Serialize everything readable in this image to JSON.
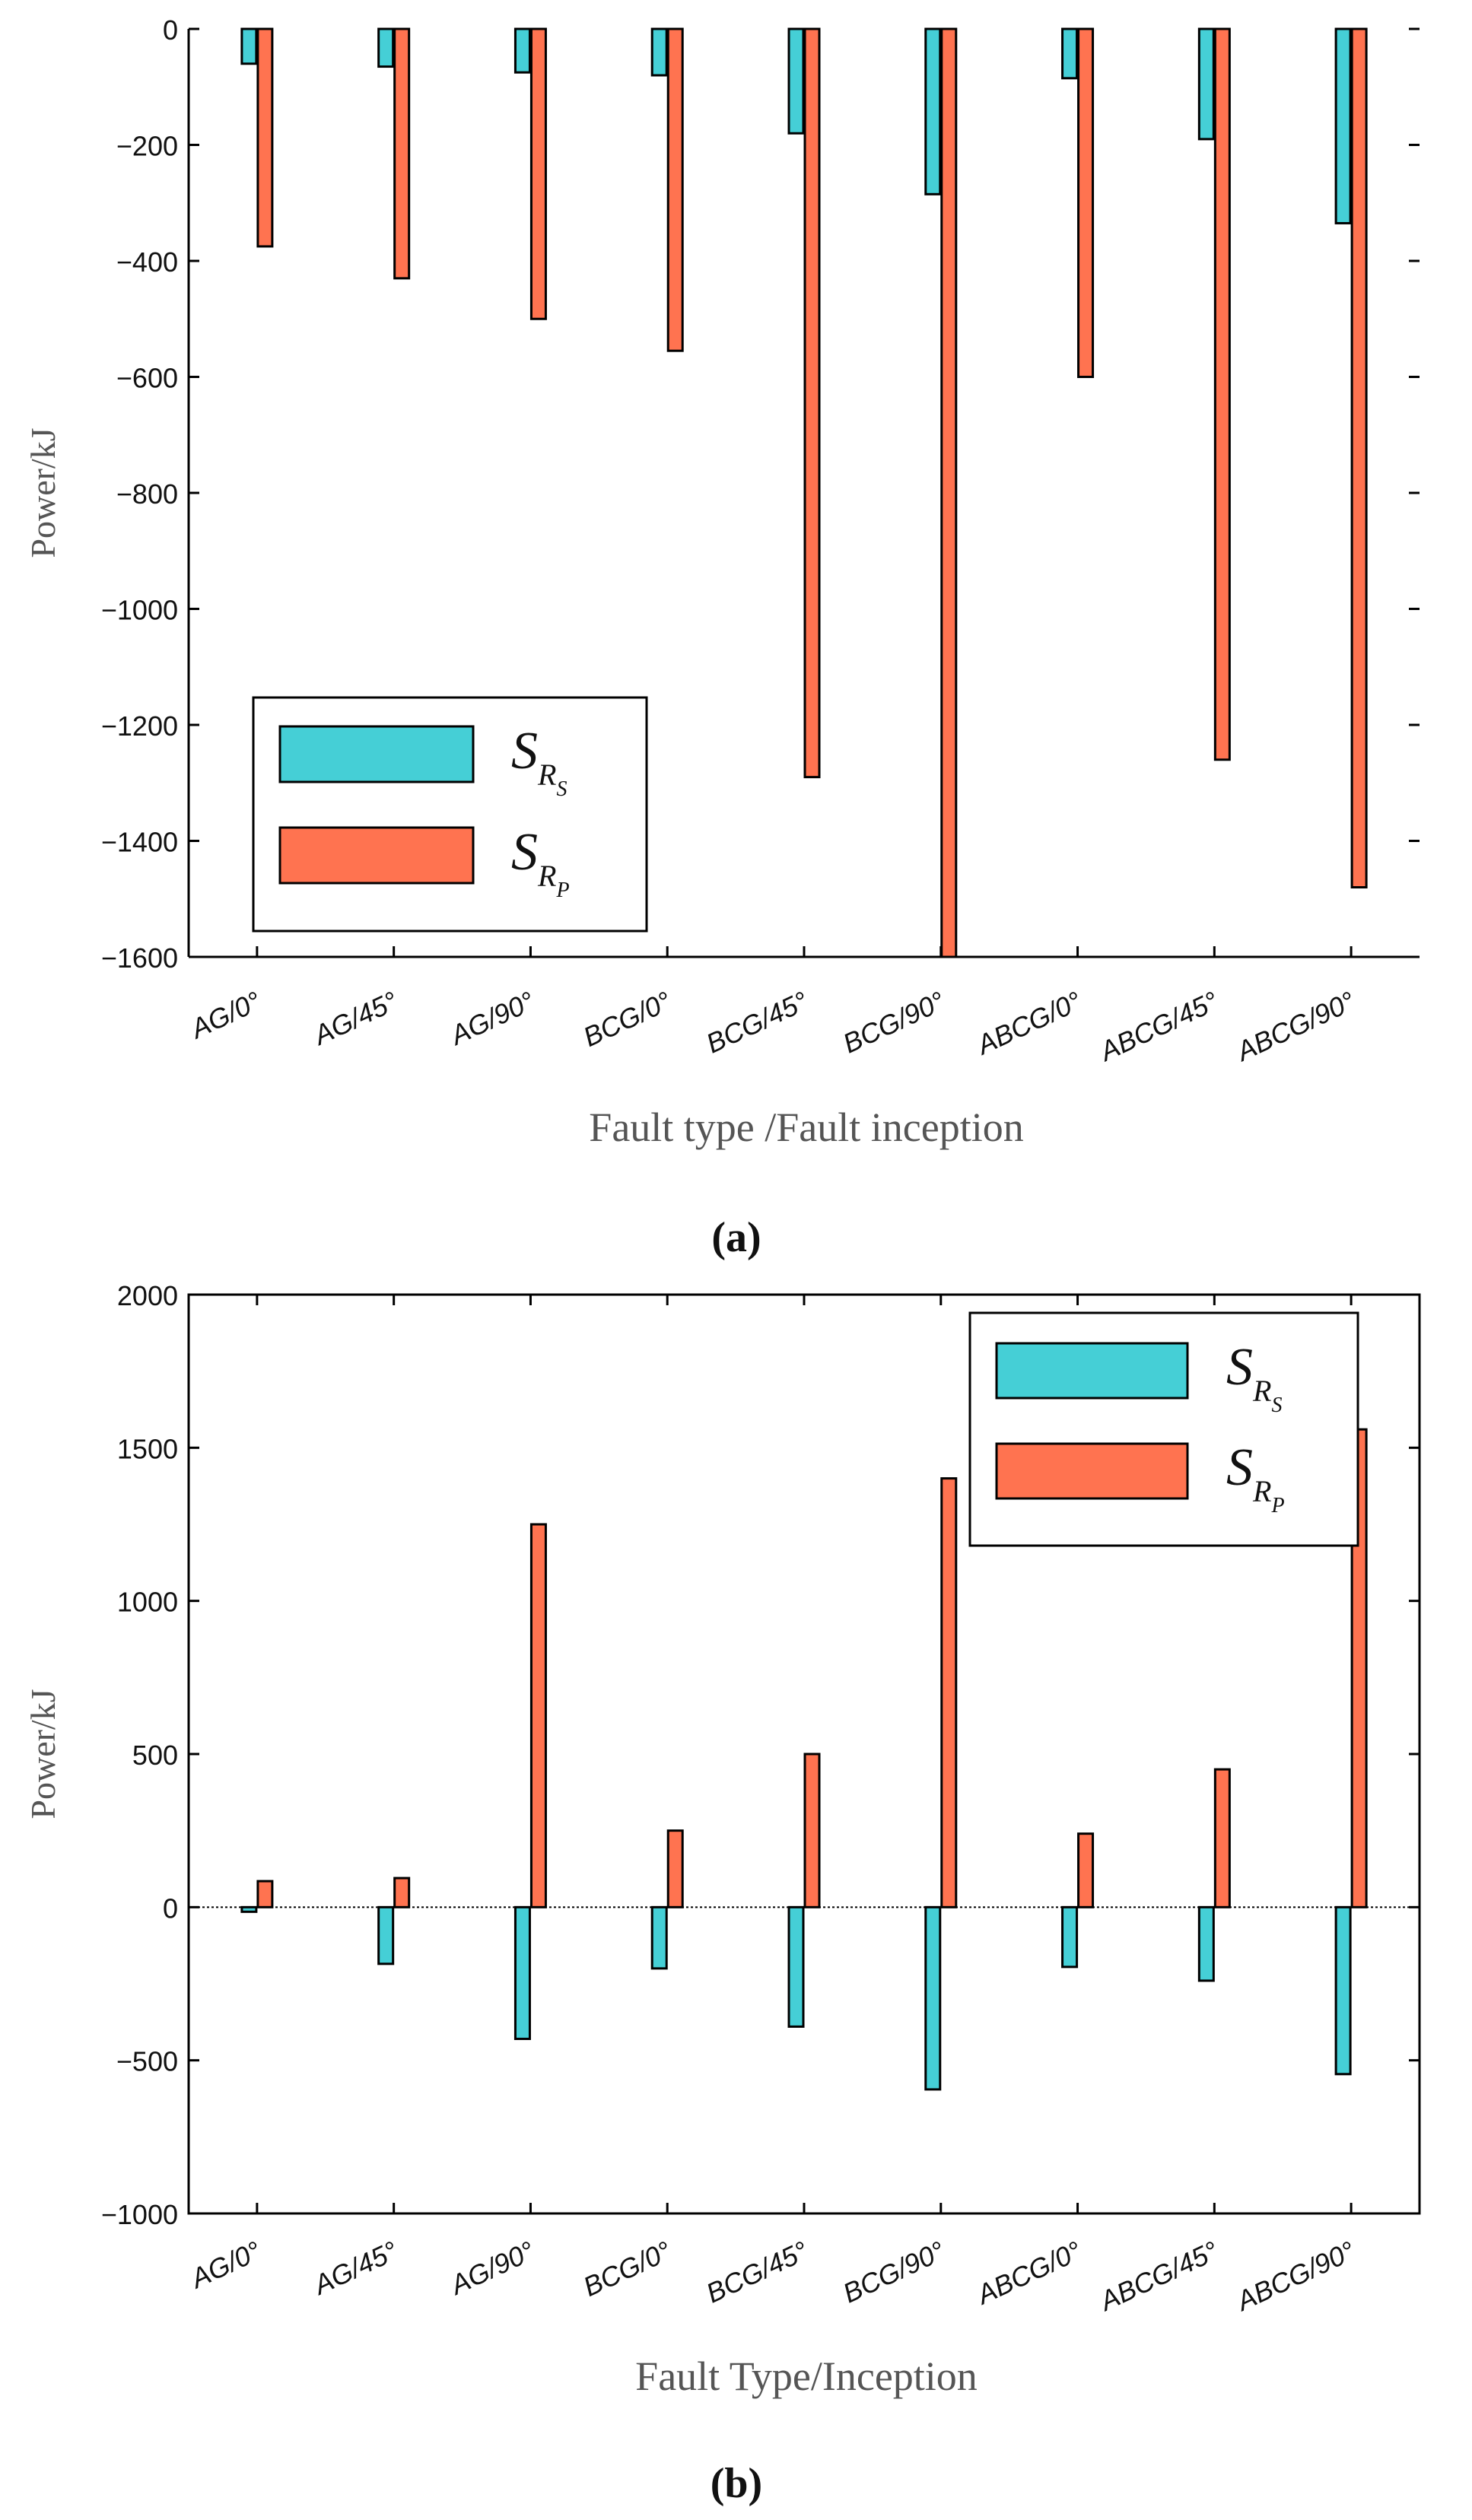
{
  "colors": {
    "s_rs": "#45CFD6",
    "s_rp": "#FF7350"
  },
  "chart_data": [
    {
      "type": "bar",
      "panel_label": "(a)",
      "title": "",
      "xlabel": "Fault type /Fault inception",
      "ylabel": "Power/kJ",
      "ylim": [
        -1600,
        0
      ],
      "yticks": [
        0,
        -200,
        -400,
        -600,
        -800,
        -1000,
        -1200,
        -1400,
        -1600
      ],
      "categories": [
        "AG/0°",
        "AG/45°",
        "AG/90°",
        "BCG/0°",
        "BCG/45°",
        "BCG/90°",
        "ABCG/0°",
        "ABCG/45°",
        "ABCG/90°"
      ],
      "legend_position": "bottom-left",
      "series": [
        {
          "name": "S_RS",
          "legend_main": "S",
          "legend_sub": "R",
          "legend_subsub": "S",
          "values": [
            -60,
            -65,
            -75,
            -80,
            -180,
            -285,
            -85,
            -190,
            -335
          ]
        },
        {
          "name": "S_RP",
          "legend_main": "S",
          "legend_sub": "R",
          "legend_subsub": "P",
          "values": [
            -375,
            -430,
            -500,
            -555,
            -1290,
            -1600,
            -600,
            -1260,
            -1480
          ]
        }
      ]
    },
    {
      "type": "bar",
      "panel_label": "(b)",
      "title": "",
      "xlabel": "Fault Type/Inception",
      "ylabel": "Power/kJ",
      "ylim": [
        -1000,
        2000
      ],
      "yticks": [
        2000,
        1500,
        1000,
        500,
        0,
        -500,
        -1000
      ],
      "categories": [
        "AG/0°",
        "AG/45°",
        "AG/90°",
        "BCG/0°",
        "BCG/45°",
        "BCG/90°",
        "ABCG/0°",
        "ABCG/45°",
        "ABCG/90°"
      ],
      "legend_position": "top-right",
      "series": [
        {
          "name": "S_RS",
          "legend_main": "S",
          "legend_sub": "R",
          "legend_subsub": "S",
          "values": [
            -15,
            -185,
            -430,
            -200,
            -390,
            -595,
            -195,
            -240,
            -545
          ]
        },
        {
          "name": "S_RP",
          "legend_main": "S",
          "legend_sub": "R",
          "legend_subsub": "P",
          "values": [
            85,
            95,
            1250,
            250,
            500,
            1400,
            240,
            450,
            1560
          ]
        }
      ]
    }
  ]
}
